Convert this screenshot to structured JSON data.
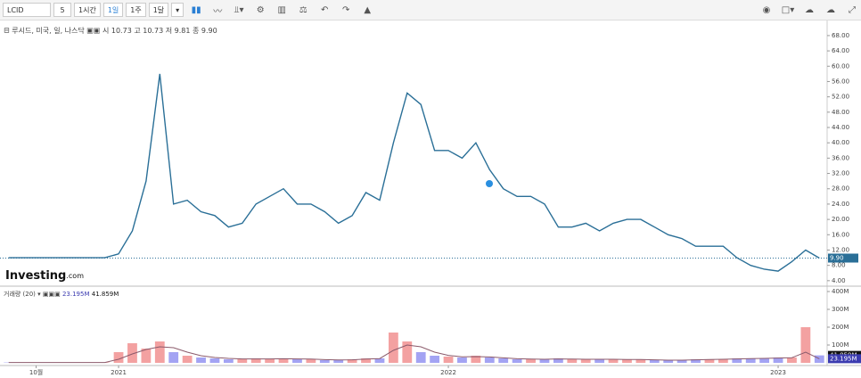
{
  "toolbar": {
    "symbol": "LCID",
    "interval_count": "5",
    "intervals": [
      "1시간",
      "1일",
      "1주",
      "1달"
    ]
  },
  "brand": {
    "name": "Investing",
    "suffix": ".com"
  },
  "chart_data": [
    {
      "type": "line",
      "title": "루시드, 미국, 일, 나스닥",
      "ohlc": [
        {
          "label": "시",
          "value": "10.73"
        },
        {
          "label": "고",
          "value": "10.73"
        },
        {
          "label": "저",
          "value": "9.81"
        },
        {
          "label": "종",
          "value": "9.90"
        }
      ],
      "color": "#2a6f97",
      "values": [
        10,
        10,
        10,
        10,
        10,
        10,
        10,
        10,
        11,
        17,
        30,
        58,
        24,
        25,
        22,
        21,
        18,
        19,
        24,
        26,
        28,
        24,
        24,
        22,
        19,
        21,
        27,
        25,
        40,
        53,
        50,
        38,
        38,
        36,
        40,
        33,
        28,
        26,
        26,
        24,
        18,
        18,
        19,
        17,
        19,
        20,
        20,
        18,
        16,
        15,
        13,
        13,
        13,
        10,
        8,
        7,
        6.5,
        9,
        12,
        9.9
      ],
      "current": {
        "value": 9.9,
        "label": "9.90"
      },
      "ylim": [
        2.8,
        71.7
      ],
      "yticks": [
        {
          "value": 4,
          "label": "4.00"
        },
        {
          "value": 8,
          "label": "8.00"
        },
        {
          "value": 12,
          "label": "12.00"
        },
        {
          "value": 16,
          "label": "16.00"
        },
        {
          "value": 20,
          "label": "20.00"
        },
        {
          "value": 24,
          "label": "24.00"
        },
        {
          "value": 28,
          "label": "28.00"
        },
        {
          "value": 32,
          "label": "32.00"
        },
        {
          "value": 36,
          "label": "36.00"
        },
        {
          "value": 40,
          "label": "40.00"
        },
        {
          "value": 44,
          "label": "44.00"
        },
        {
          "value": 48,
          "label": "48.00"
        },
        {
          "value": 52,
          "label": "52.00"
        },
        {
          "value": 56,
          "label": "56.00"
        },
        {
          "value": 60,
          "label": "60.00"
        },
        {
          "value": 64,
          "label": "64.00"
        },
        {
          "value": 68,
          "label": "68.00"
        }
      ]
    },
    {
      "type": "bar",
      "title": "거래량 (20)",
      "categories": [
        null,
        null,
        "10월",
        null,
        null,
        null,
        null,
        null,
        "2021",
        null,
        null,
        null,
        null,
        null,
        null,
        null,
        null,
        null,
        null,
        null,
        null,
        null,
        null,
        null,
        null,
        null,
        null,
        null,
        null,
        null,
        null,
        null,
        "2022",
        null,
        null,
        null,
        null,
        null,
        null,
        null,
        null,
        null,
        null,
        null,
        null,
        null,
        null,
        null,
        null,
        null,
        null,
        null,
        null,
        null,
        null,
        null,
        "2023",
        null,
        null,
        null
      ],
      "values": [
        2000000,
        2000000,
        2000000,
        2000000,
        2000000,
        2000000,
        2000000,
        2000000,
        60000000,
        110000000,
        80000000,
        120000000,
        60000000,
        40000000,
        30000000,
        25000000,
        20000000,
        20000000,
        25000000,
        20000000,
        25000000,
        20000000,
        20000000,
        15000000,
        15000000,
        20000000,
        25000000,
        25000000,
        170000000,
        120000000,
        60000000,
        40000000,
        35000000,
        30000000,
        40000000,
        30000000,
        25000000,
        20000000,
        20000000,
        20000000,
        25000000,
        20000000,
        20000000,
        20000000,
        20000000,
        18000000,
        20000000,
        15000000,
        15000000,
        15000000,
        20000000,
        20000000,
        20000000,
        25000000,
        25000000,
        25000000,
        30000000,
        30000000,
        200000000,
        41859000
      ],
      "ma_values": [
        2000000,
        2000000,
        2000000,
        2000000,
        2000000,
        2000000,
        2000000,
        2000000,
        20000000,
        50000000,
        75000000,
        90000000,
        85000000,
        60000000,
        40000000,
        30000000,
        25000000,
        22000000,
        22000000,
        22000000,
        23000000,
        22000000,
        21000000,
        18000000,
        16000000,
        17000000,
        21000000,
        24000000,
        70000000,
        100000000,
        90000000,
        60000000,
        42000000,
        34000000,
        35000000,
        33000000,
        28000000,
        23000000,
        21000000,
        20000000,
        22000000,
        21000000,
        20000000,
        20000000,
        20000000,
        19000000,
        19000000,
        17000000,
        15000000,
        15000000,
        17000000,
        19000000,
        20000000,
        22000000,
        24000000,
        25000000,
        27000000,
        29000000,
        60000000,
        23195000
      ],
      "up_color": "#f08a8a",
      "down_color": "#8c8cf0",
      "ma_color": "#8b5a6b",
      "current": {
        "ma": {
          "value": 23195000,
          "label": "23.195M"
        },
        "volume": {
          "value": 41859000,
          "label": "41.859M"
        }
      },
      "ylim": [
        0,
        425000000
      ],
      "yticks": [
        {
          "value": 100000000,
          "label": "100M"
        },
        {
          "value": 200000000,
          "label": "200M"
        },
        {
          "value": 300000000,
          "label": "300M"
        },
        {
          "value": 400000000,
          "label": "400M"
        }
      ]
    }
  ]
}
